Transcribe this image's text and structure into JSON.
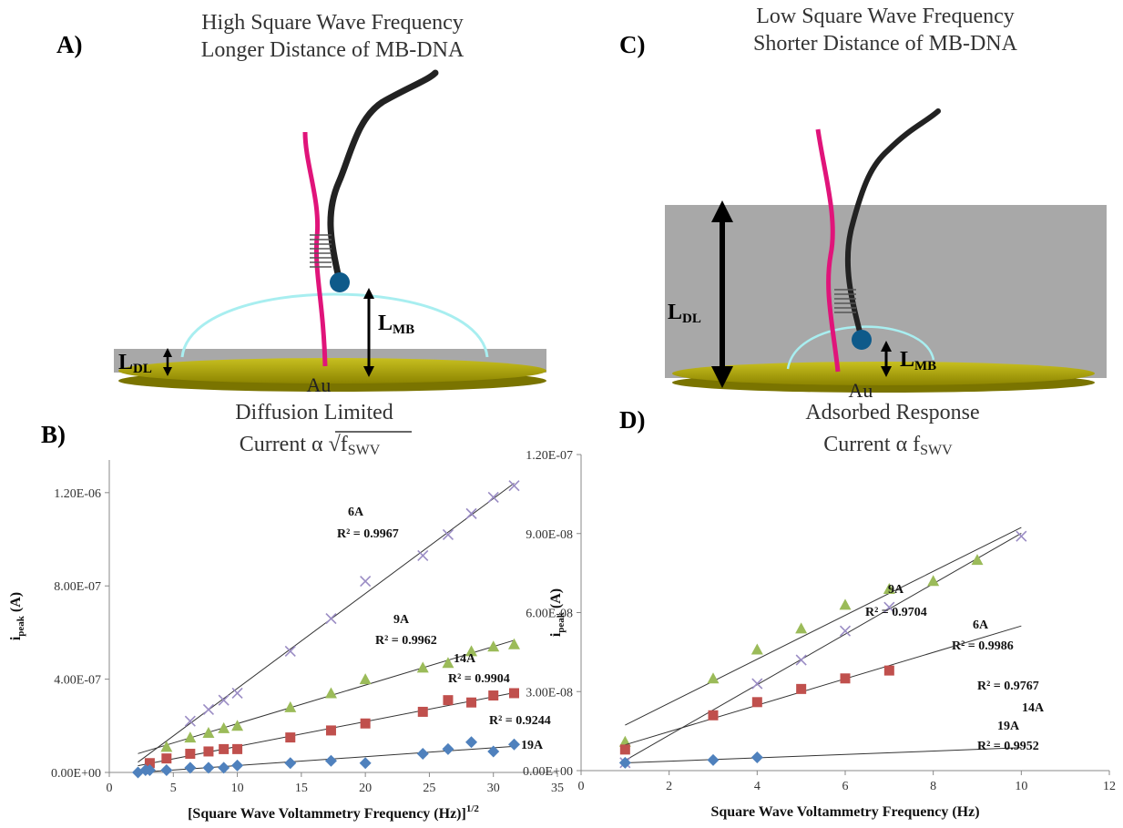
{
  "illustrations": [
    {
      "label": "A)",
      "title": [
        "High Square Wave Frequency",
        "Longer Distance of MB-DNA"
      ],
      "l_dl": {
        "text": "L",
        "sub": "DL"
      },
      "l_mb": {
        "text": "L",
        "sub": "MB"
      },
      "electrode": "Au",
      "caption": [
        "Diffusion Limited",
        {
          "text": "Current α √f",
          "sub": "SWV"
        }
      ]
    },
    {
      "label": "C)",
      "title": [
        "Low Square Wave Frequency",
        "Shorter Distance of MB-DNA"
      ],
      "l_dl": {
        "text": "L",
        "sub": "DL"
      },
      "l_mb": {
        "text": "L",
        "sub": "MB"
      },
      "electrode": "Au",
      "caption": [
        "Adsorbed Response",
        {
          "text": "Current α f",
          "sub": "SWV"
        }
      ]
    }
  ],
  "chart_data": [
    {
      "type": "scatter",
      "panel_label": "B)",
      "xlabel": {
        "text": "[Square Wave Voltammetry Frequency  (Hz)]",
        "sup": "1/2"
      },
      "ylabel": {
        "text": "i",
        "sub": "peak",
        "unit": "(A)"
      },
      "xlim": [
        0,
        35
      ],
      "xticks": [
        0,
        5,
        10,
        15,
        20,
        25,
        30,
        35
      ],
      "ylim": [
        0,
        1.34e-06
      ],
      "yticks": [
        {
          "value": 0,
          "label": "0.00E+00"
        },
        {
          "value": 4e-07,
          "label": "4.00E-07"
        },
        {
          "value": 8e-07,
          "label": "8.00E-07"
        },
        {
          "value": 1.2e-06,
          "label": "1.20E-06"
        }
      ],
      "trendlines": true,
      "series": [
        {
          "name": "6A",
          "r2": "R² = 0.9967",
          "color": "#9a8cc4",
          "marker": "x",
          "x": [
            6.32,
            7.75,
            8.94,
            10,
            14.14,
            17.32,
            20,
            24.49,
            26.46,
            28.28,
            30,
            31.62
          ],
          "values": [
            2.2e-07,
            2.7e-07,
            3.1e-07,
            3.4e-07,
            5.2e-07,
            6.6e-07,
            8.2e-07,
            9.3e-07,
            1.02e-06,
            1.11e-06,
            1.18e-06,
            1.23e-06
          ]
        },
        {
          "name": "9A",
          "r2": "R² = 0.9962",
          "color": "#9bbb59",
          "marker": "triangle",
          "x": [
            4.47,
            6.32,
            7.75,
            8.94,
            10,
            14.14,
            17.32,
            20,
            24.49,
            26.46,
            28.28,
            30,
            31.62
          ],
          "values": [
            1.1e-07,
            1.5e-07,
            1.7e-07,
            1.9e-07,
            2e-07,
            2.8e-07,
            3.4e-07,
            4e-07,
            4.5e-07,
            4.7e-07,
            5.2e-07,
            5.4e-07,
            5.5e-07
          ]
        },
        {
          "name": "14A",
          "r2": "R² = 0.9904",
          "color": "#c0504d",
          "marker": "square",
          "x": [
            3.16,
            4.47,
            6.32,
            7.75,
            8.94,
            10,
            14.14,
            17.32,
            20,
            24.49,
            26.46,
            28.28,
            30,
            31.62
          ],
          "values": [
            4e-08,
            6e-08,
            8e-08,
            9e-08,
            1e-07,
            1e-07,
            1.5e-07,
            1.8e-07,
            2.1e-07,
            2.6e-07,
            3.1e-07,
            3e-07,
            3.3e-07,
            3.4e-07
          ]
        },
        {
          "name": "19A",
          "r2": "R² = 0.9244",
          "color": "#4f81bd",
          "marker": "diamond",
          "x": [
            2.24,
            2.83,
            3.16,
            4.47,
            6.32,
            7.75,
            8.94,
            10,
            14.14,
            17.32,
            20,
            24.49,
            26.46,
            28.28,
            30,
            31.62
          ],
          "values": [
            0,
            1e-08,
            1e-08,
            1e-08,
            2e-08,
            2e-08,
            2e-08,
            3e-08,
            4e-08,
            5e-08,
            4e-08,
            8e-08,
            1e-07,
            1.3e-07,
            9e-08,
            1.2e-07
          ]
        }
      ]
    },
    {
      "type": "scatter",
      "panel_label": "D)",
      "xlabel": {
        "text": "Square Wave Voltammetry Frequency (Hz)"
      },
      "ylabel": {
        "text": "i",
        "sub": "peak",
        "unit": "(A)"
      },
      "xlim": [
        0,
        12
      ],
      "xticks": [
        0,
        2,
        4,
        6,
        8,
        10,
        12
      ],
      "ylim": [
        0,
        1.2e-07
      ],
      "yticks": [
        {
          "value": 0,
          "label": "0.00E+00"
        },
        {
          "value": 3e-08,
          "label": "3.00E-08"
        },
        {
          "value": 6e-08,
          "label": "6.00E-08"
        },
        {
          "value": 9e-08,
          "label": "9.00E-08"
        },
        {
          "value": 1.2e-07,
          "label": "1.20E-07"
        }
      ],
      "trendlines": true,
      "series": [
        {
          "name": "6A",
          "r2": "R² = 0.9986",
          "color": "#9a8cc4",
          "marker": "x",
          "x": [
            1,
            4,
            5,
            6,
            7,
            10
          ],
          "values": [
            3e-09,
            3.3e-08,
            4.2e-08,
            5.3e-08,
            6.2e-08,
            8.9e-08
          ]
        },
        {
          "name": "9A",
          "r2": "R² = 0.9704",
          "color": "#9bbb59",
          "marker": "triangle",
          "x": [
            1,
            3,
            4,
            5,
            6,
            7,
            8,
            9
          ],
          "values": [
            1.1e-08,
            3.5e-08,
            4.6e-08,
            5.4e-08,
            6.3e-08,
            6.9e-08,
            7.2e-08,
            8e-08
          ]
        },
        {
          "name": "14A",
          "r2": "R² = 0.9767",
          "color": "#c0504d",
          "marker": "square",
          "x": [
            1,
            3,
            4,
            5,
            6,
            7
          ],
          "values": [
            8e-09,
            2.1e-08,
            2.6e-08,
            3.1e-08,
            3.5e-08,
            3.8e-08
          ]
        },
        {
          "name": "19A",
          "r2": "R² = 0.9952",
          "color": "#4f81bd",
          "marker": "diamond",
          "x": [
            1,
            3,
            4
          ],
          "values": [
            3e-09,
            4e-09,
            5e-09
          ]
        }
      ]
    }
  ]
}
